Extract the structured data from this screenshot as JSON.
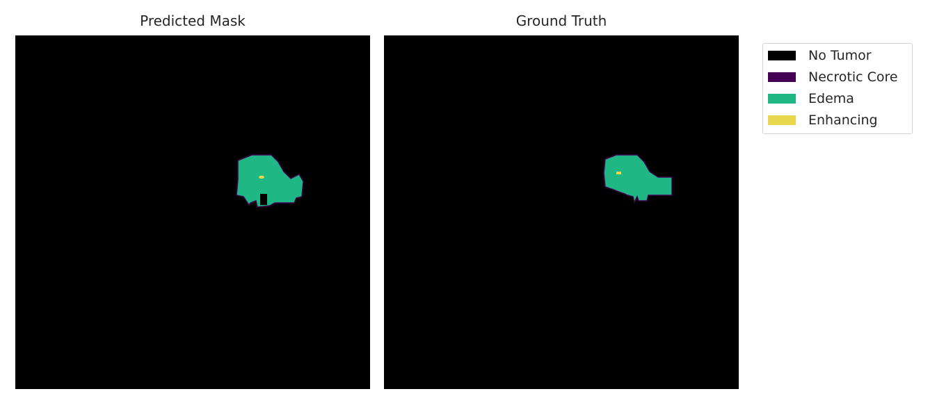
{
  "panels": [
    {
      "title": "Predicted Mask"
    },
    {
      "title": "Ground Truth"
    }
  ],
  "legend": {
    "items": [
      {
        "label": "No Tumor",
        "color": "#000000"
      },
      {
        "label": "Necrotic Core",
        "color": "#440154"
      },
      {
        "label": "Edema",
        "color": "#1fb784"
      },
      {
        "label": "Enhancing",
        "color": "#e9d74f"
      }
    ]
  },
  "colors": {
    "background": "#000000",
    "necrotic_outline": "#440154",
    "edema": "#1fb784",
    "enhancing": "#e9d74f"
  }
}
